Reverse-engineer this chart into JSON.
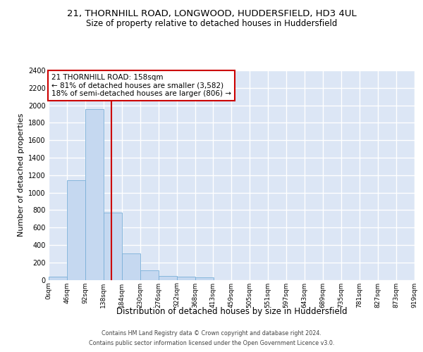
{
  "title_line1": "21, THORNHILL ROAD, LONGWOOD, HUDDERSFIELD, HD3 4UL",
  "title_line2": "Size of property relative to detached houses in Huddersfield",
  "xlabel": "Distribution of detached houses by size in Huddersfield",
  "ylabel": "Number of detached properties",
  "footer_line1": "Contains HM Land Registry data © Crown copyright and database right 2024.",
  "footer_line2": "Contains public sector information licensed under the Open Government Licence v3.0.",
  "bin_edges": [
    0,
    46,
    92,
    138,
    184,
    230,
    276,
    322,
    368,
    413,
    459,
    505,
    551,
    597,
    643,
    689,
    735,
    781,
    827,
    873,
    919
  ],
  "bar_heights": [
    35,
    1140,
    1960,
    770,
    300,
    105,
    47,
    40,
    25,
    0,
    0,
    0,
    0,
    0,
    0,
    0,
    0,
    0,
    0,
    0
  ],
  "bar_color": "#c5d8f0",
  "bar_edgecolor": "#7ab0d8",
  "property_size": 158,
  "vline_color": "#cc0000",
  "annotation_text": "21 THORNHILL ROAD: 158sqm\n← 81% of detached houses are smaller (3,582)\n18% of semi-detached houses are larger (806) →",
  "annotation_box_edgecolor": "#cc0000",
  "annotation_box_facecolor": "white",
  "ylim_max": 2400,
  "yticks": [
    0,
    200,
    400,
    600,
    800,
    1000,
    1200,
    1400,
    1600,
    1800,
    2000,
    2200,
    2400
  ],
  "bg_color": "#dce6f5",
  "grid_color": "white"
}
